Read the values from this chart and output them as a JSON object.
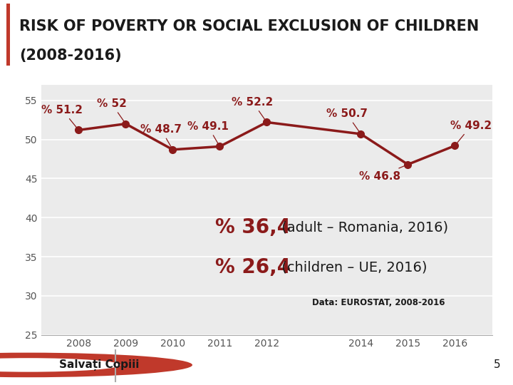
{
  "title_line1": "RISK OF POVERTY OR SOCIAL EXCLUSION OF CHILDREN",
  "title_line2": "(2008-2016)",
  "years": [
    2008,
    2009,
    2010,
    2011,
    2012,
    2014,
    2015,
    2016
  ],
  "values": [
    51.2,
    52.0,
    48.7,
    49.1,
    52.2,
    50.7,
    46.8,
    49.2
  ],
  "labels": [
    "% 51.2",
    "% 52",
    "% 48.7",
    "% 49.1",
    "% 52.2",
    "% 50.7",
    "% 46.8",
    "% 49.2"
  ],
  "line_color": "#8B1A1A",
  "line_width": 2.5,
  "marker_size": 7,
  "ylim": [
    25,
    57
  ],
  "yticks": [
    25,
    30,
    35,
    40,
    45,
    50,
    55
  ],
  "background_color": "#ebebeb",
  "outer_background": "#ffffff",
  "annotation_adult_bold": "% 36,4",
  "annotation_adult_normal": " (adult – Romania, 2016)",
  "annotation_children_bold": "% 26,4",
  "annotation_children_normal": " (children – UE, 2016)",
  "data_source": "Data: EUROSTAT, 2008-2016",
  "title_bar_color": "#c0392b",
  "title_fontsize": 15,
  "label_fontsize": 11,
  "footer_text": "Salvați Copiii",
  "page_number": "5"
}
